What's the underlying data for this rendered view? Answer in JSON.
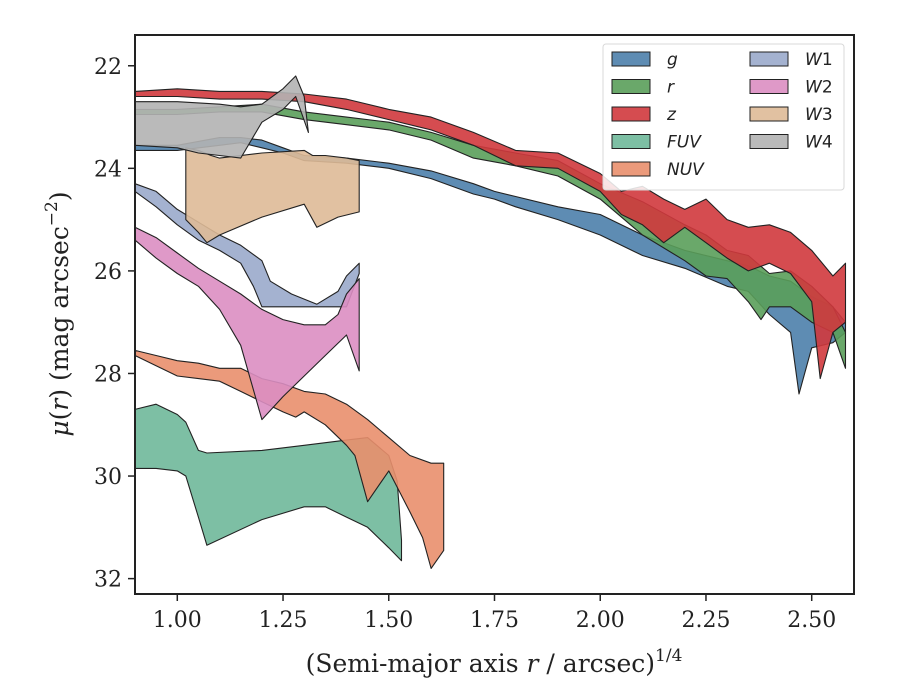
{
  "chart_data": {
    "type": "area",
    "xlabel": "(Semi-major axis r / arcsec)^1/4",
    "ylabel": "μ(r) (mag arcsec^−2)",
    "xlim": [
      0.9,
      2.6
    ],
    "ylim": [
      32.3,
      21.4
    ],
    "y_inverted": true,
    "xticks": [
      1.0,
      1.25,
      1.5,
      1.75,
      2.0,
      2.25,
      2.5
    ],
    "xtick_labels": [
      "1.00",
      "1.25",
      "1.50",
      "1.75",
      "2.00",
      "2.25",
      "2.50"
    ],
    "yticks": [
      22,
      24,
      26,
      28,
      30,
      32
    ],
    "ytick_labels": [
      "22",
      "24",
      "26",
      "28",
      "30",
      "32"
    ],
    "legend": {
      "placement": "top-right",
      "columns": 2
    },
    "series": [
      {
        "name": "g",
        "label_main": "g",
        "label_sup": "",
        "color": "#4c7fab",
        "upper": [
          [
            0.9,
            23.55
          ],
          [
            1.0,
            23.55
          ],
          [
            1.1,
            23.4
          ],
          [
            1.15,
            23.4
          ],
          [
            1.2,
            23.45
          ],
          [
            1.25,
            23.6
          ],
          [
            1.3,
            23.75
          ],
          [
            1.4,
            23.8
          ],
          [
            1.5,
            23.9
          ],
          [
            1.6,
            24.05
          ],
          [
            1.7,
            24.3
          ],
          [
            1.75,
            24.45
          ],
          [
            1.8,
            24.55
          ],
          [
            1.9,
            24.75
          ],
          [
            2.0,
            24.9
          ],
          [
            2.1,
            25.3
          ],
          [
            2.2,
            25.6
          ],
          [
            2.3,
            25.8
          ],
          [
            2.35,
            25.9
          ],
          [
            2.4,
            26.1
          ],
          [
            2.45,
            26.2
          ],
          [
            2.5,
            26.5
          ],
          [
            2.55,
            26.7
          ],
          [
            2.58,
            27.0
          ]
        ],
        "lower": [
          [
            0.9,
            23.65
          ],
          [
            1.0,
            23.65
          ],
          [
            1.1,
            23.55
          ],
          [
            1.15,
            23.5
          ],
          [
            1.2,
            23.6
          ],
          [
            1.25,
            23.7
          ],
          [
            1.3,
            23.85
          ],
          [
            1.4,
            23.9
          ],
          [
            1.5,
            24.0
          ],
          [
            1.6,
            24.2
          ],
          [
            1.7,
            24.5
          ],
          [
            1.75,
            24.6
          ],
          [
            1.8,
            24.75
          ],
          [
            1.9,
            25.0
          ],
          [
            2.0,
            25.3
          ],
          [
            2.1,
            25.7
          ],
          [
            2.2,
            25.95
          ],
          [
            2.3,
            26.3
          ],
          [
            2.35,
            26.4
          ],
          [
            2.4,
            26.85
          ],
          [
            2.45,
            27.2
          ],
          [
            2.47,
            28.4
          ],
          [
            2.5,
            27.5
          ],
          [
            2.55,
            27.4
          ],
          [
            2.58,
            27.2
          ]
        ]
      },
      {
        "name": "r",
        "label_main": "r",
        "label_sup": "",
        "color": "#5a9e5a",
        "upper": [
          [
            0.9,
            22.85
          ],
          [
            1.0,
            22.85
          ],
          [
            1.1,
            22.8
          ],
          [
            1.2,
            22.75
          ],
          [
            1.3,
            22.9
          ],
          [
            1.4,
            23.0
          ],
          [
            1.5,
            23.1
          ],
          [
            1.6,
            23.3
          ],
          [
            1.7,
            23.55
          ],
          [
            1.8,
            23.7
          ],
          [
            1.9,
            23.85
          ],
          [
            2.0,
            24.3
          ],
          [
            2.1,
            24.65
          ],
          [
            2.2,
            25.1
          ],
          [
            2.25,
            25.3
          ],
          [
            2.3,
            25.6
          ],
          [
            2.35,
            25.7
          ],
          [
            2.4,
            26.05
          ],
          [
            2.45,
            26.0
          ],
          [
            2.5,
            26.3
          ],
          [
            2.55,
            26.7
          ],
          [
            2.58,
            27.2
          ]
        ],
        "lower": [
          [
            0.9,
            22.95
          ],
          [
            1.0,
            22.95
          ],
          [
            1.1,
            22.9
          ],
          [
            1.2,
            22.9
          ],
          [
            1.3,
            23.05
          ],
          [
            1.4,
            23.15
          ],
          [
            1.5,
            23.25
          ],
          [
            1.6,
            23.45
          ],
          [
            1.7,
            23.8
          ],
          [
            1.8,
            23.95
          ],
          [
            1.9,
            24.15
          ],
          [
            2.0,
            24.6
          ],
          [
            2.05,
            24.95
          ],
          [
            2.1,
            25.3
          ],
          [
            2.2,
            25.8
          ],
          [
            2.25,
            26.1
          ],
          [
            2.3,
            26.15
          ],
          [
            2.35,
            26.6
          ],
          [
            2.38,
            26.95
          ],
          [
            2.4,
            26.7
          ],
          [
            2.45,
            26.7
          ],
          [
            2.5,
            27.0
          ],
          [
            2.55,
            27.2
          ],
          [
            2.58,
            27.9
          ]
        ]
      },
      {
        "name": "z",
        "label_main": "z",
        "label_sup": "",
        "color": "#d0393d",
        "upper": [
          [
            0.9,
            22.5
          ],
          [
            1.0,
            22.45
          ],
          [
            1.1,
            22.5
          ],
          [
            1.2,
            22.5
          ],
          [
            1.3,
            22.55
          ],
          [
            1.4,
            22.65
          ],
          [
            1.5,
            22.85
          ],
          [
            1.6,
            23.0
          ],
          [
            1.7,
            23.3
          ],
          [
            1.8,
            23.65
          ],
          [
            1.9,
            23.7
          ],
          [
            2.0,
            24.1
          ],
          [
            2.05,
            24.45
          ],
          [
            2.1,
            24.35
          ],
          [
            2.15,
            24.6
          ],
          [
            2.2,
            24.8
          ],
          [
            2.25,
            24.6
          ],
          [
            2.3,
            25.0
          ],
          [
            2.35,
            25.15
          ],
          [
            2.4,
            25.1
          ],
          [
            2.45,
            25.25
          ],
          [
            2.5,
            25.6
          ],
          [
            2.55,
            26.1
          ],
          [
            2.58,
            25.85
          ]
        ],
        "lower": [
          [
            0.9,
            22.6
          ],
          [
            1.0,
            22.6
          ],
          [
            1.1,
            22.65
          ],
          [
            1.2,
            22.65
          ],
          [
            1.3,
            22.7
          ],
          [
            1.4,
            22.85
          ],
          [
            1.5,
            23.05
          ],
          [
            1.6,
            23.25
          ],
          [
            1.7,
            23.55
          ],
          [
            1.8,
            23.95
          ],
          [
            1.9,
            24.0
          ],
          [
            2.0,
            24.45
          ],
          [
            2.05,
            24.9
          ],
          [
            2.1,
            25.1
          ],
          [
            2.15,
            25.45
          ],
          [
            2.2,
            25.15
          ],
          [
            2.25,
            25.45
          ],
          [
            2.3,
            25.75
          ],
          [
            2.35,
            26.0
          ],
          [
            2.4,
            25.85
          ],
          [
            2.45,
            26.05
          ],
          [
            2.5,
            26.6
          ],
          [
            2.52,
            28.1
          ],
          [
            2.55,
            27.2
          ],
          [
            2.58,
            27.0
          ]
        ]
      },
      {
        "name": "FUV",
        "label_main": "FUV",
        "label_sup": "",
        "color": "#6fb89a",
        "upper": [
          [
            0.9,
            28.7
          ],
          [
            0.95,
            28.6
          ],
          [
            1.0,
            28.8
          ],
          [
            1.02,
            28.95
          ],
          [
            1.05,
            29.5
          ],
          [
            1.07,
            29.55
          ],
          [
            1.2,
            29.5
          ],
          [
            1.3,
            29.4
          ],
          [
            1.4,
            29.3
          ],
          [
            1.45,
            29.25
          ],
          [
            1.5,
            29.6
          ],
          [
            1.52,
            30.1
          ],
          [
            1.53,
            31.25
          ]
        ],
        "lower": [
          [
            0.9,
            29.85
          ],
          [
            0.95,
            29.85
          ],
          [
            1.0,
            29.9
          ],
          [
            1.02,
            30.0
          ],
          [
            1.05,
            30.8
          ],
          [
            1.07,
            31.35
          ],
          [
            1.2,
            30.85
          ],
          [
            1.3,
            30.6
          ],
          [
            1.35,
            30.6
          ],
          [
            1.4,
            30.8
          ],
          [
            1.45,
            31.0
          ],
          [
            1.5,
            31.4
          ],
          [
            1.53,
            31.65
          ]
        ]
      },
      {
        "name": "NUV",
        "label_main": "NUV",
        "label_sup": "",
        "color": "#e98f6d",
        "upper": [
          [
            0.9,
            27.55
          ],
          [
            0.95,
            27.65
          ],
          [
            1.0,
            27.75
          ],
          [
            1.05,
            27.8
          ],
          [
            1.1,
            27.9
          ],
          [
            1.15,
            27.9
          ],
          [
            1.2,
            28.1
          ],
          [
            1.25,
            28.2
          ],
          [
            1.3,
            28.35
          ],
          [
            1.35,
            28.4
          ],
          [
            1.4,
            28.6
          ],
          [
            1.45,
            28.9
          ],
          [
            1.5,
            29.25
          ],
          [
            1.55,
            29.6
          ],
          [
            1.6,
            29.75
          ],
          [
            1.63,
            29.75
          ]
        ],
        "lower": [
          [
            0.9,
            27.65
          ],
          [
            0.95,
            27.85
          ],
          [
            1.0,
            28.05
          ],
          [
            1.05,
            28.1
          ],
          [
            1.1,
            28.15
          ],
          [
            1.15,
            28.35
          ],
          [
            1.2,
            28.55
          ],
          [
            1.25,
            28.75
          ],
          [
            1.28,
            28.85
          ],
          [
            1.3,
            28.75
          ],
          [
            1.35,
            29.0
          ],
          [
            1.4,
            29.4
          ],
          [
            1.42,
            29.6
          ],
          [
            1.45,
            30.5
          ],
          [
            1.5,
            29.9
          ],
          [
            1.55,
            30.7
          ],
          [
            1.58,
            31.2
          ],
          [
            1.6,
            31.8
          ],
          [
            1.63,
            31.45
          ]
        ]
      },
      {
        "name": "W1",
        "label_main": "W",
        "label_sup": "1",
        "color": "#9aaacb",
        "upper": [
          [
            0.9,
            24.3
          ],
          [
            0.95,
            24.45
          ],
          [
            1.0,
            24.8
          ],
          [
            1.05,
            25.05
          ],
          [
            1.1,
            25.3
          ],
          [
            1.15,
            25.5
          ],
          [
            1.2,
            25.8
          ],
          [
            1.22,
            26.2
          ],
          [
            1.27,
            26.45
          ],
          [
            1.3,
            26.55
          ],
          [
            1.33,
            26.65
          ],
          [
            1.38,
            26.4
          ],
          [
            1.4,
            26.1
          ],
          [
            1.43,
            25.85
          ]
        ],
        "lower": [
          [
            0.9,
            24.45
          ],
          [
            0.95,
            24.75
          ],
          [
            1.0,
            25.1
          ],
          [
            1.05,
            25.4
          ],
          [
            1.1,
            25.6
          ],
          [
            1.15,
            25.85
          ],
          [
            1.18,
            26.3
          ],
          [
            1.2,
            26.7
          ],
          [
            1.3,
            26.7
          ],
          [
            1.35,
            26.7
          ],
          [
            1.4,
            26.7
          ],
          [
            1.43,
            26.05
          ]
        ]
      },
      {
        "name": "W2",
        "label_main": "W",
        "label_sup": "2",
        "color": "#db8ec2",
        "upper": [
          [
            0.9,
            25.15
          ],
          [
            0.95,
            25.35
          ],
          [
            1.0,
            25.65
          ],
          [
            1.05,
            25.95
          ],
          [
            1.1,
            26.2
          ],
          [
            1.15,
            26.45
          ],
          [
            1.2,
            26.75
          ],
          [
            1.25,
            26.95
          ],
          [
            1.3,
            27.05
          ],
          [
            1.35,
            27.05
          ],
          [
            1.38,
            26.85
          ],
          [
            1.4,
            26.45
          ],
          [
            1.43,
            26.15
          ],
          [
            1.43,
            27.95
          ]
        ],
        "lower": [
          [
            0.9,
            25.4
          ],
          [
            0.95,
            25.75
          ],
          [
            1.0,
            26.05
          ],
          [
            1.05,
            26.3
          ],
          [
            1.1,
            26.75
          ],
          [
            1.15,
            27.45
          ],
          [
            1.2,
            28.9
          ],
          [
            1.25,
            28.45
          ],
          [
            1.3,
            28.05
          ],
          [
            1.35,
            27.65
          ],
          [
            1.4,
            27.25
          ],
          [
            1.43,
            27.95
          ]
        ]
      },
      {
        "name": "W3",
        "label_main": "W",
        "label_sup": "3",
        "color": "#deba97",
        "upper": [
          [
            1.02,
            23.6
          ],
          [
            1.05,
            23.65
          ],
          [
            1.08,
            23.75
          ],
          [
            1.1,
            23.8
          ],
          [
            1.2,
            23.7
          ],
          [
            1.3,
            23.65
          ],
          [
            1.32,
            23.75
          ],
          [
            1.35,
            23.75
          ],
          [
            1.4,
            23.8
          ],
          [
            1.43,
            23.85
          ]
        ],
        "lower": [
          [
            1.02,
            25.0
          ],
          [
            1.05,
            25.25
          ],
          [
            1.07,
            25.45
          ],
          [
            1.1,
            25.3
          ],
          [
            1.2,
            24.95
          ],
          [
            1.3,
            24.7
          ],
          [
            1.33,
            25.15
          ],
          [
            1.38,
            24.95
          ],
          [
            1.43,
            24.85
          ]
        ]
      },
      {
        "name": "W4",
        "label_main": "W",
        "label_sup": "4",
        "color": "#b3b3b3",
        "upper": [
          [
            0.9,
            22.7
          ],
          [
            1.0,
            22.7
          ],
          [
            1.1,
            22.75
          ],
          [
            1.15,
            22.8
          ],
          [
            1.2,
            22.75
          ],
          [
            1.25,
            22.45
          ],
          [
            1.28,
            22.2
          ],
          [
            1.3,
            22.6
          ],
          [
            1.31,
            23.3
          ]
        ],
        "lower": [
          [
            0.9,
            23.55
          ],
          [
            1.0,
            23.6
          ],
          [
            1.05,
            23.7
          ],
          [
            1.1,
            23.75
          ],
          [
            1.15,
            23.8
          ],
          [
            1.2,
            23.1
          ],
          [
            1.25,
            22.85
          ],
          [
            1.28,
            22.6
          ],
          [
            1.31,
            23.3
          ]
        ]
      }
    ]
  }
}
